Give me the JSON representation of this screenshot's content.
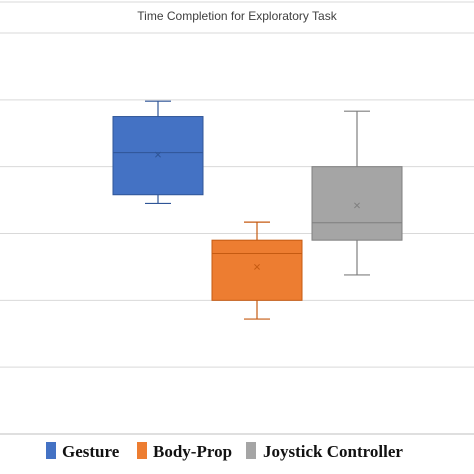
{
  "chart_data": {
    "type": "box",
    "title": "Time Completion for Exploratory Task",
    "xlabel": "",
    "ylabel": "",
    "ylim": [
      0,
      6
    ],
    "y_gridlines": [
      0,
      1,
      2,
      3,
      4,
      5,
      6
    ],
    "grid": true,
    "legend_position": "bottom",
    "series": [
      {
        "name": "Gesture",
        "color": "#4472C4",
        "min": 3.45,
        "q1": 3.58,
        "median": 4.21,
        "q3": 4.75,
        "max": 4.98,
        "mean": 4.18
      },
      {
        "name": "Body-Prop",
        "color": "#ED7D31",
        "min": 1.72,
        "q1": 2.0,
        "median": 2.7,
        "q3": 2.9,
        "max": 3.17,
        "mean": 2.5
      },
      {
        "name": "Joystick Controller",
        "color": "#A5A5A5",
        "min": 2.38,
        "q1": 2.9,
        "median": 3.16,
        "q3": 4.0,
        "max": 4.83,
        "mean": 3.42
      }
    ]
  }
}
